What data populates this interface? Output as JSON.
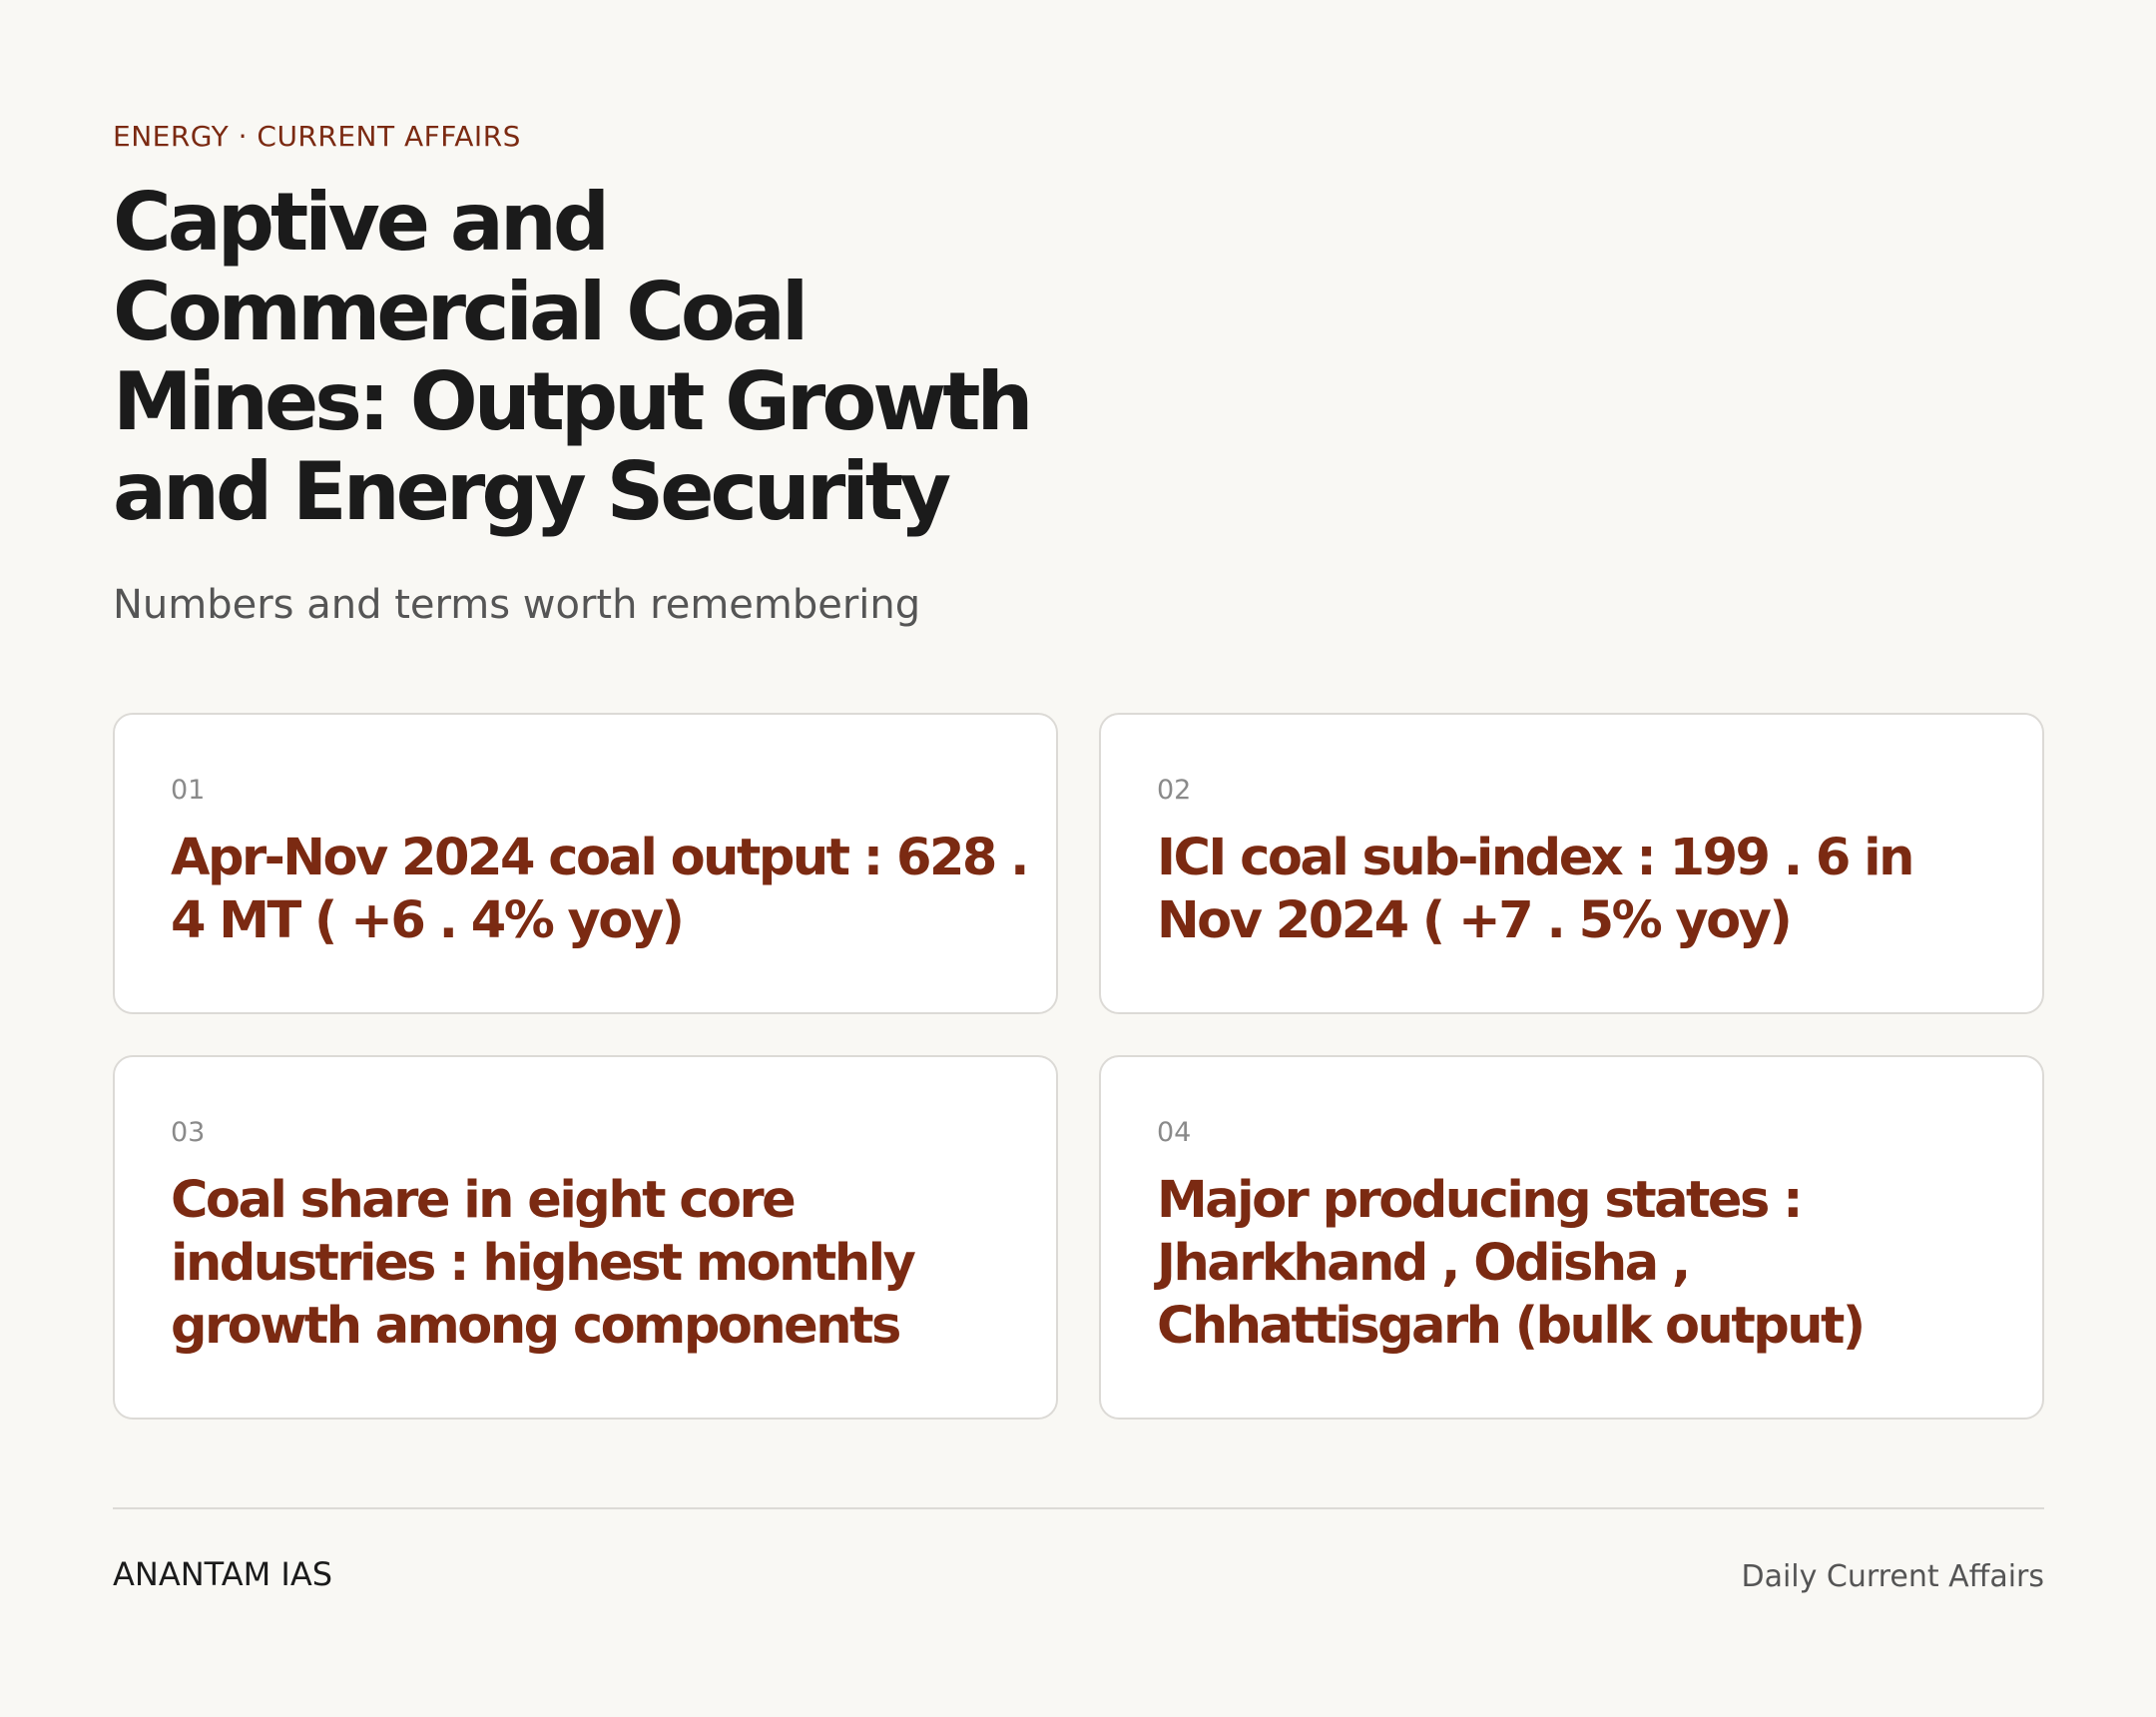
{
  "header": {
    "kicker": "ENERGY · CURRENT AFFAIRS",
    "title": "Captive and Commercial Coal Mines: Output Growth and Energy Security",
    "subtitle": "Numbers and terms worth remembering"
  },
  "cards": [
    {
      "number": "01",
      "text": "Apr-Nov 2024 coal output : 628 . 4 MT ( +6 . 4% yoy)"
    },
    {
      "number": "02",
      "text": "ICI coal sub-index : 199 . 6 in Nov 2024 ( +7 . 5% yoy)"
    },
    {
      "number": "03",
      "text": "Coal share in eight core industries : highest monthly growth among components"
    },
    {
      "number": "04",
      "text": "Major producing states : Jharkhand , Odisha , Chhattisgarh (bulk output)"
    }
  ],
  "footer": {
    "brand": "ANANTAM IAS",
    "note": "Daily Current Affairs"
  },
  "colors": {
    "background": "#f9f8f4",
    "accent": "#7b2a12",
    "title": "#1b1b1b",
    "muted": "#555555",
    "card_border": "#dcdad6"
  }
}
